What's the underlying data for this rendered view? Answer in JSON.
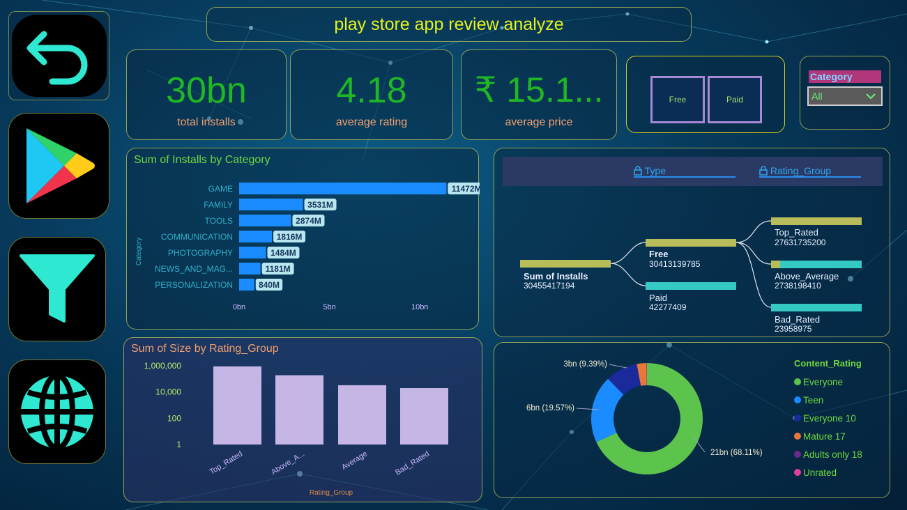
{
  "title": "play store app review analyze",
  "nav": [
    {
      "name": "back-arrow-icon"
    },
    {
      "name": "play-store-icon"
    },
    {
      "name": "filter-icon"
    },
    {
      "name": "globe-icon"
    }
  ],
  "kpis": [
    {
      "value": "30bn",
      "label": "total installs"
    },
    {
      "value": "4.18",
      "label": "average rating"
    },
    {
      "value": "₹ 15.1...",
      "label": "average price"
    }
  ],
  "type_slicer": {
    "options": [
      "Free",
      "Paid"
    ]
  },
  "category_slicer": {
    "label": "Category",
    "selected": "All"
  },
  "installs_chart": {
    "title": "Sum of Installs by Category",
    "ylabel": "Category",
    "categories": [
      "GAME",
      "FAMILY",
      "TOOLS",
      "COMMUNICATION",
      "PHOTOGRAPHY",
      "NEWS_AND_MAG...",
      "PERSONALIZATION"
    ],
    "labels": [
      "11472M",
      "3531M",
      "2874M",
      "1816M",
      "1484M",
      "1181M",
      "840M"
    ],
    "ticks": [
      "0bn",
      "5bn",
      "10bn"
    ]
  },
  "decomp_tree": {
    "headers": [
      "Type",
      "Rating_Group"
    ],
    "root": {
      "label": "Sum of Installs",
      "value": "30455417194"
    },
    "level1": [
      {
        "label": "Free",
        "value": "30413139785"
      },
      {
        "label": "Paid",
        "value": "42277409"
      }
    ],
    "level2": [
      {
        "label": "Top_Rated",
        "value": "27631735200"
      },
      {
        "label": "Above_Average",
        "value": "2738198410"
      },
      {
        "label": "Bad_Rated",
        "value": "23958975"
      }
    ]
  },
  "size_chart": {
    "title": "Sum of Size by Rating_Group",
    "xlabel": "Rating_Group",
    "ytick_labels": [
      "1,000,000",
      "10,000",
      "100",
      "1"
    ],
    "categories": [
      "Top_Rated",
      "Above_A...",
      "Average",
      "Bad_Rated"
    ]
  },
  "donut": {
    "labels": [
      "21bn (68.11%)",
      "6bn (19.57%)",
      "3bn (9.39%)"
    ],
    "legend_title": "Content_Rating",
    "legend": [
      "Everyone",
      "Teen",
      "Everyone 10",
      "Mature 17",
      "Adults only 18",
      "Unrated"
    ]
  },
  "colors": {
    "accent": "#e6f21c",
    "kpi_value": "#1fb824",
    "bar": "#1b8cff",
    "size_bar": "#c6b6e6",
    "decomp_bar": "#b8bd5a",
    "decomp_fill": "#35c9c4",
    "legend": [
      "#5cc44c",
      "#1b8cff",
      "#1a2a9a",
      "#e8783a",
      "#6a2a8a",
      "#e0409a"
    ]
  },
  "chart_data": [
    {
      "type": "bar",
      "title": "Sum of Installs by Category",
      "ylabel": "Category",
      "categories": [
        "GAME",
        "FAMILY",
        "TOOLS",
        "COMMUNICATION",
        "PHOTOGRAPHY",
        "NEWS_AND_MAG...",
        "PERSONALIZATION"
      ],
      "values": [
        11472,
        3531,
        2874,
        1816,
        1484,
        1181,
        840
      ],
      "unit": "M",
      "xlim": [
        0,
        12500
      ],
      "orientation": "horizontal"
    },
    {
      "type": "bar",
      "title": "Sum of Size by Rating_Group",
      "xlabel": "Rating_Group",
      "categories": [
        "Top_Rated",
        "Above_A...",
        "Average",
        "Bad_Rated"
      ],
      "values": [
        900000,
        190000,
        33000,
        20000
      ],
      "yscale": "log",
      "ylim": [
        1,
        1000000
      ]
    },
    {
      "type": "pie",
      "legend_title": "Content_Rating",
      "categories": [
        "Everyone",
        "Teen",
        "Everyone 10",
        "Mature 17",
        "Adults only 18",
        "Unrated"
      ],
      "values": [
        68.11,
        19.57,
        9.39,
        2.8,
        0.07,
        0.06
      ],
      "labels": [
        "21bn (68.11%)",
        "6bn (19.57%)",
        "3bn (9.39%)"
      ]
    }
  ]
}
